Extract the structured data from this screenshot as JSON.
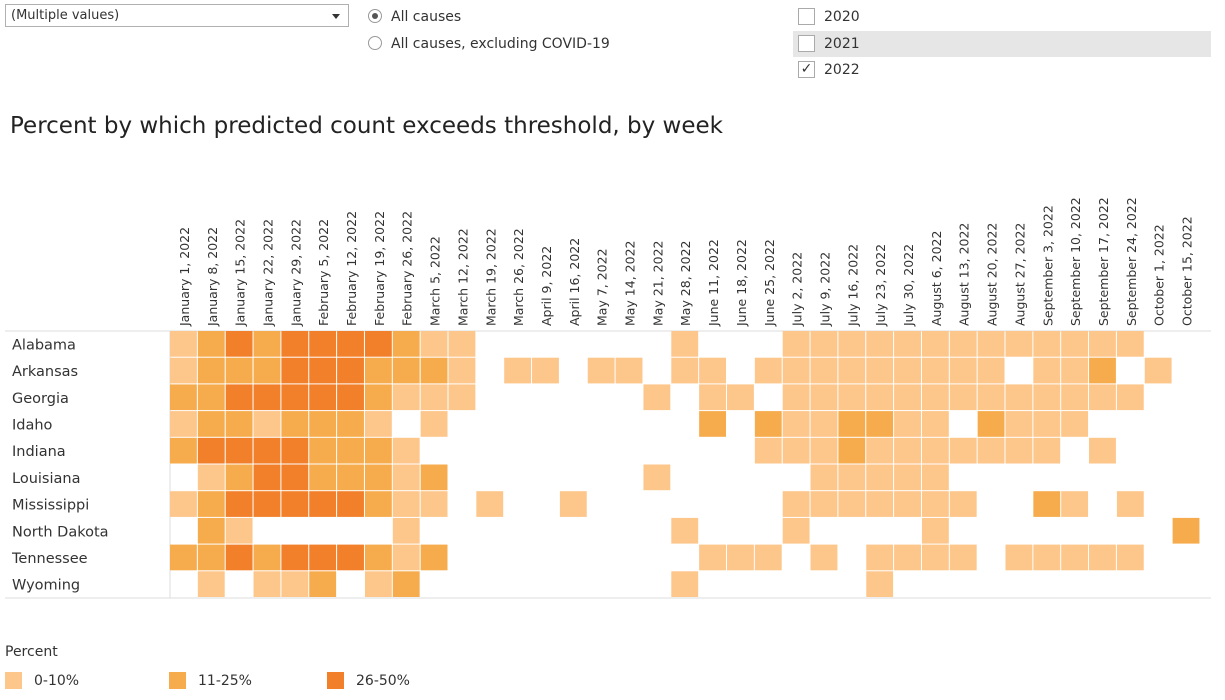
{
  "controls": {
    "dropdown_value": "(Multiple values)",
    "radios": [
      {
        "label": "All causes",
        "selected": true
      },
      {
        "label": "All causes, excluding COVID-19",
        "selected": false
      }
    ],
    "years": [
      {
        "label": "2020",
        "checked": false
      },
      {
        "label": "2021",
        "checked": false
      },
      {
        "label": "2022",
        "checked": true
      }
    ]
  },
  "colors": {
    "low": "#fdc68b",
    "mid": "#f6ac4d",
    "high": "#f27f2a",
    "grid": "#ffffff",
    "border": "#dddddd"
  },
  "chart_data": {
    "type": "heatmap",
    "title": "Percent by which predicted count exceeds threshold, by week",
    "weeks": [
      "January 1, 2022",
      "January 8, 2022",
      "January 15, 2022",
      "January 22, 2022",
      "January 29, 2022",
      "February 5, 2022",
      "February 12, 2022",
      "February 19, 2022",
      "February 26, 2022",
      "March 5, 2022",
      "March 12, 2022",
      "March 19, 2022",
      "March 26, 2022",
      "April 9, 2022",
      "April 16, 2022",
      "May 7, 2022",
      "May 14, 2022",
      "May 21, 2022",
      "May 28, 2022",
      "June 11, 2022",
      "June 18, 2022",
      "June 25, 2022",
      "July 2, 2022",
      "July 9, 2022",
      "July 16, 2022",
      "July 23, 2022",
      "July 30, 2022",
      "August 6, 2022",
      "August 13, 2022",
      "August 20, 2022",
      "August 27, 2022",
      "September 3, 2022",
      "September 10, 2022",
      "September 17, 2022",
      "September 24, 2022",
      "October 1, 2022",
      "October 15, 2022"
    ],
    "states": [
      "Alabama",
      "Arkansas",
      "Georgia",
      "Idaho",
      "Indiana",
      "Louisiana",
      "Mississippi",
      "North Dakota",
      "Tennessee",
      "Wyoming"
    ],
    "legend_title": "Percent",
    "legend": [
      "0-10%",
      "11-25%",
      "26-50%"
    ],
    "levels_note_key": [
      "",
      "0-10%",
      "11-25%",
      "26-50%"
    ],
    "values": [
      [
        1,
        2,
        3,
        2,
        3,
        3,
        3,
        3,
        2,
        1,
        1,
        0,
        0,
        0,
        0,
        0,
        0,
        0,
        1,
        0,
        0,
        0,
        1,
        1,
        1,
        1,
        1,
        1,
        1,
        1,
        1,
        1,
        1,
        1,
        1,
        0,
        0
      ],
      [
        1,
        2,
        2,
        2,
        3,
        3,
        3,
        2,
        2,
        2,
        1,
        0,
        1,
        1,
        0,
        1,
        1,
        0,
        1,
        1,
        0,
        1,
        1,
        1,
        1,
        1,
        1,
        1,
        1,
        1,
        0,
        1,
        1,
        2,
        0,
        1,
        0
      ],
      [
        2,
        2,
        3,
        3,
        3,
        3,
        3,
        2,
        1,
        1,
        1,
        0,
        0,
        0,
        0,
        0,
        0,
        1,
        0,
        1,
        1,
        0,
        1,
        1,
        1,
        1,
        1,
        1,
        1,
        1,
        1,
        1,
        1,
        1,
        1,
        0,
        0
      ],
      [
        1,
        2,
        2,
        1,
        2,
        2,
        2,
        1,
        0,
        1,
        0,
        0,
        0,
        0,
        0,
        0,
        0,
        0,
        0,
        2,
        0,
        2,
        1,
        1,
        2,
        2,
        1,
        1,
        0,
        2,
        1,
        1,
        1,
        0,
        0,
        0,
        0
      ],
      [
        2,
        3,
        3,
        3,
        3,
        2,
        2,
        2,
        1,
        0,
        0,
        0,
        0,
        0,
        0,
        0,
        0,
        0,
        0,
        0,
        0,
        1,
        1,
        1,
        2,
        1,
        1,
        1,
        1,
        1,
        1,
        1,
        0,
        1,
        0,
        0,
        0
      ],
      [
        0,
        1,
        2,
        3,
        3,
        2,
        2,
        2,
        1,
        2,
        0,
        0,
        0,
        0,
        0,
        0,
        0,
        1,
        0,
        0,
        0,
        0,
        0,
        1,
        1,
        1,
        1,
        1,
        0,
        0,
        0,
        0,
        0,
        0,
        0,
        0,
        0
      ],
      [
        1,
        2,
        3,
        3,
        3,
        3,
        3,
        2,
        1,
        1,
        0,
        1,
        0,
        0,
        1,
        0,
        0,
        0,
        0,
        0,
        0,
        0,
        1,
        1,
        1,
        1,
        1,
        1,
        1,
        0,
        0,
        2,
        1,
        0,
        1,
        0,
        0
      ],
      [
        0,
        2,
        1,
        0,
        0,
        0,
        0,
        0,
        1,
        0,
        0,
        0,
        0,
        0,
        0,
        0,
        0,
        0,
        1,
        0,
        0,
        0,
        1,
        0,
        0,
        0,
        0,
        1,
        0,
        0,
        0,
        0,
        0,
        0,
        0,
        0,
        2
      ],
      [
        2,
        2,
        3,
        2,
        3,
        3,
        3,
        2,
        1,
        2,
        0,
        0,
        0,
        0,
        0,
        0,
        0,
        0,
        0,
        1,
        1,
        1,
        0,
        1,
        0,
        1,
        1,
        1,
        1,
        0,
        1,
        1,
        1,
        1,
        1,
        0,
        0
      ],
      [
        0,
        1,
        0,
        1,
        1,
        2,
        0,
        1,
        2,
        0,
        0,
        0,
        0,
        0,
        0,
        0,
        0,
        0,
        1,
        0,
        0,
        0,
        0,
        0,
        0,
        1,
        0,
        0,
        0,
        0,
        0,
        0,
        0,
        0,
        0,
        0,
        0
      ]
    ]
  }
}
